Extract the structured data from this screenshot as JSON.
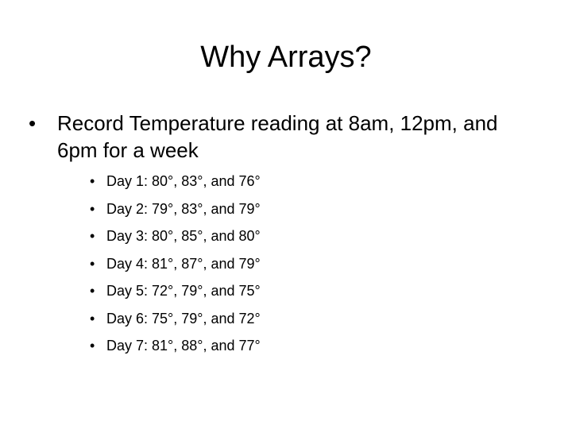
{
  "slide": {
    "title": "Why Arrays?",
    "bullet_glyph": "•",
    "main_point": "Record Temperature reading at 8am, 12pm, and 6pm for a week",
    "days": [
      "Day 1: 80°, 83°, and 76°",
      "Day 2: 79°, 83°, and 79°",
      "Day 3: 80°, 85°, and 80°",
      "Day 4: 81°, 87°, and 79°",
      "Day 5: 72°, 79°, and 75°",
      "Day 6: 75°, 79°, and 72°",
      "Day 7: 81°, 88°, and 77°"
    ]
  }
}
